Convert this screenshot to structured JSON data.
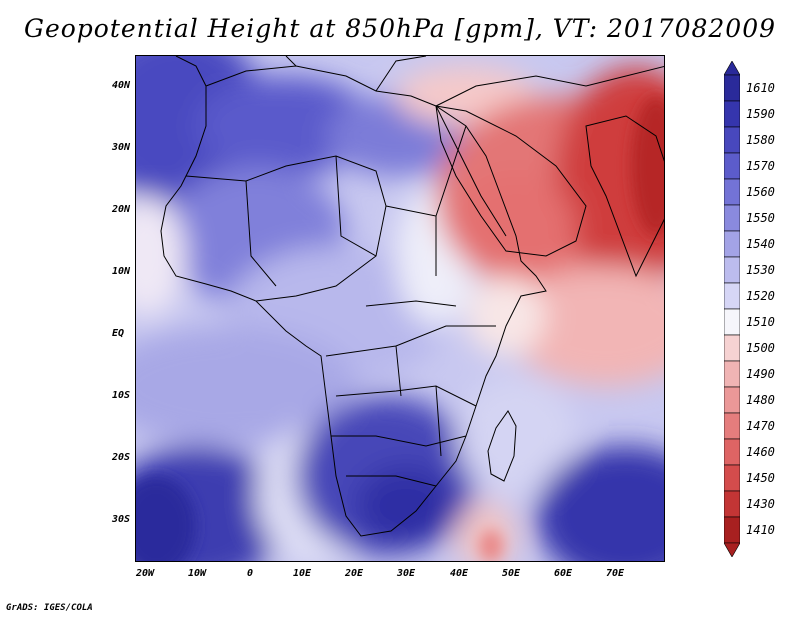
{
  "title": "Geopotential Height at 850hPa [gpm], VT: 2017082009",
  "credit": "GrADS: IGES/COLA",
  "lat_labels": [
    "40N",
    "30N",
    "20N",
    "10N",
    "EQ",
    "10S",
    "20S",
    "30S"
  ],
  "lon_labels": [
    "20W",
    "10W",
    "0",
    "10E",
    "20E",
    "30E",
    "40E",
    "50E",
    "60E",
    "70E"
  ],
  "colorbar": {
    "levels": [
      "1610",
      "1590",
      "1580",
      "1570",
      "1560",
      "1550",
      "1540",
      "1530",
      "1520",
      "1510",
      "1500",
      "1490",
      "1480",
      "1470",
      "1460",
      "1450",
      "1430",
      "1410"
    ],
    "colors": [
      "#2a2a9a",
      "#3535ad",
      "#4848bd",
      "#5c5ccb",
      "#7373d6",
      "#8a8ade",
      "#a3a3e6",
      "#bcbcee",
      "#d6d6f6",
      "#f6f6fb",
      "#f6d2d2",
      "#f0b4b4",
      "#eb9898",
      "#e57d7d",
      "#de6464",
      "#d44c4c",
      "#c33535",
      "#a82020"
    ]
  },
  "map": {
    "variable": "Geopotential Height",
    "level": "850hPa",
    "units": "gpm",
    "valid_time": "2017082009"
  }
}
